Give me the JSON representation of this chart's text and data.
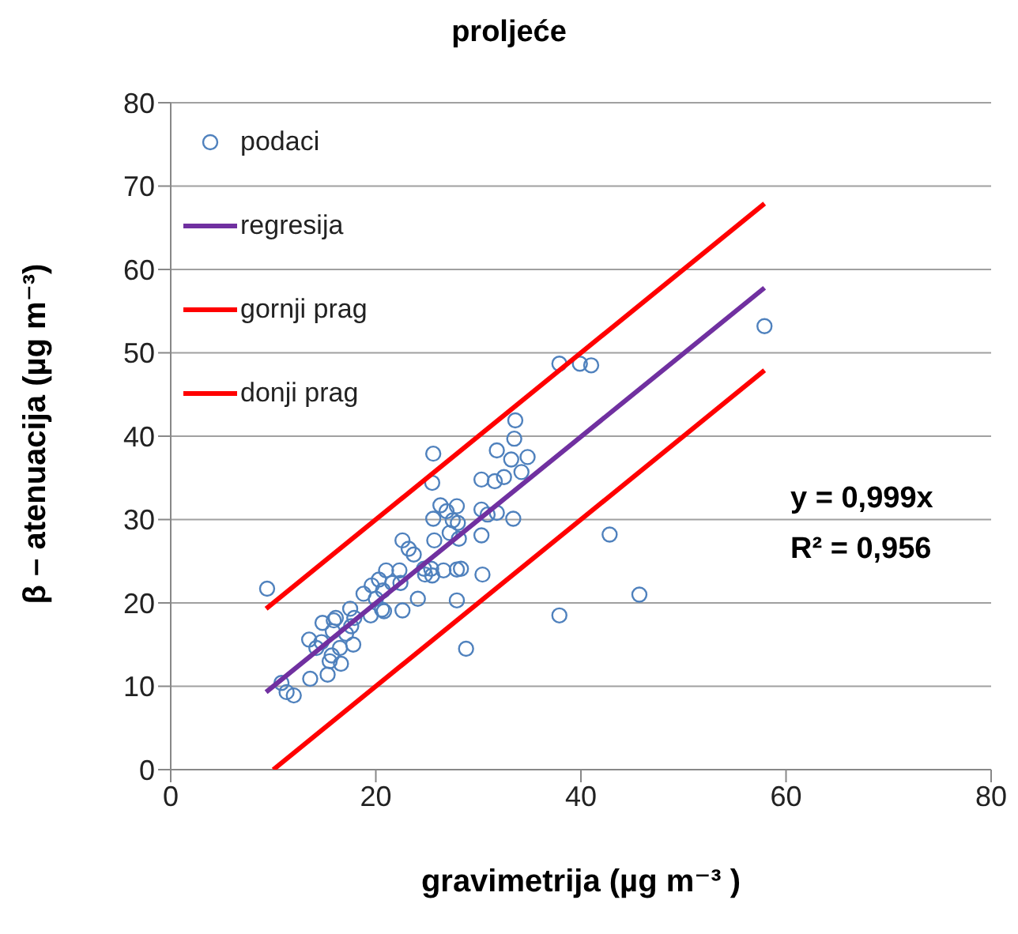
{
  "chart_data": {
    "type": "scatter",
    "title": "proljeće",
    "xlabel": "gravimetrija (µg m⁻³ )",
    "ylabel": "β – atenuacija (µg m⁻³)",
    "xlim": [
      0,
      80
    ],
    "xticks": [
      0,
      20,
      40,
      60,
      80
    ],
    "ylim": [
      0,
      80
    ],
    "yticks": [
      0,
      10,
      20,
      30,
      40,
      50,
      60,
      70,
      80
    ],
    "grid": "y",
    "legend": "top left",
    "marker": "circle",
    "annotations": [
      "y = 0,999x",
      "R² = 0,956"
    ],
    "series": [
      {
        "name": "podaci",
        "type": "scatter",
        "color": "#4f81bd",
        "x": [
          9.4,
          10.8,
          11.3,
          12.0,
          13.6,
          13.5,
          14.8,
          14.2,
          14.7,
          15.3,
          15.5,
          15.8,
          15.9,
          16.1,
          15.7,
          16.6,
          16.5,
          17.5,
          17.6,
          17.8,
          17.1,
          17.9,
          18.8,
          19.5,
          19.6,
          20.0,
          20.3,
          20.6,
          20.8,
          21.0,
          20.7,
          21.6,
          22.3,
          22.4,
          22.6,
          22.6,
          23.2,
          23.7,
          24.1,
          24.7,
          24.8,
          25.4,
          25.5,
          25.6,
          25.5,
          25.6,
          25.7,
          26.3,
          26.6,
          26.9,
          27.2,
          27.5,
          27.9,
          28.0,
          28.1,
          27.9,
          28.3,
          27.9,
          28.8,
          30.3,
          30.3,
          30.3,
          30.4,
          30.9,
          31.6,
          31.8,
          31.8,
          32.5,
          33.2,
          33.5,
          33.6,
          33.4,
          34.2,
          34.8,
          37.9,
          37.9,
          39.9,
          41.0,
          42.8,
          45.7,
          57.9
        ],
        "values": [
          21.7,
          10.4,
          9.3,
          8.9,
          10.9,
          15.6,
          17.6,
          14.6,
          15.3,
          11.4,
          13.0,
          16.6,
          17.9,
          18.2,
          13.7,
          12.7,
          14.6,
          19.3,
          17.2,
          15.0,
          16.3,
          18.2,
          21.1,
          18.5,
          22.1,
          20.5,
          22.8,
          19.2,
          19.0,
          23.9,
          21.5,
          22.4,
          23.9,
          22.4,
          19.1,
          27.5,
          26.5,
          25.8,
          20.5,
          24.1,
          23.4,
          24.1,
          23.3,
          37.9,
          34.4,
          30.1,
          27.5,
          31.7,
          23.9,
          31.0,
          28.4,
          29.9,
          31.6,
          29.6,
          27.7,
          24.0,
          24.1,
          20.3,
          14.5,
          34.8,
          31.2,
          28.1,
          23.4,
          30.6,
          34.6,
          30.8,
          38.3,
          35.1,
          37.2,
          39.7,
          41.9,
          30.1,
          35.7,
          37.5,
          48.7,
          18.5,
          48.7,
          48.5,
          28.2,
          21.0,
          53.2
        ]
      },
      {
        "name": "regresija",
        "type": "line",
        "marker": "none",
        "color": "#7030a0",
        "x": [
          9.3,
          57.9
        ],
        "values": [
          9.3,
          57.8
        ]
      },
      {
        "name": "gornji prag",
        "type": "line",
        "marker": "none",
        "color": "#ff0000",
        "x": [
          9.3,
          57.9
        ],
        "values": [
          19.3,
          67.9
        ]
      },
      {
        "name": "donji prag",
        "type": "line",
        "marker": "none",
        "color": "#ff0000",
        "x": [
          10.0,
          57.9
        ],
        "values": [
          0.0,
          47.9
        ]
      }
    ]
  }
}
